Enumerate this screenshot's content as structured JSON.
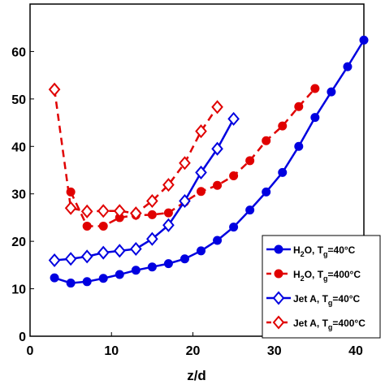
{
  "chart_data": {
    "type": "line",
    "xlabel": "z/d",
    "xlim": [
      0,
      41
    ],
    "ylim": [
      0,
      70
    ],
    "xticks": [
      0,
      10,
      20,
      30,
      40
    ],
    "yticks": [
      0,
      10,
      20,
      30,
      40,
      50,
      60
    ],
    "legend": "lower right",
    "series": [
      {
        "name": "H₂O, Tᵧ=40°C",
        "legend_parts": [
          "H",
          "2",
          "O, T",
          "g",
          "=40°C"
        ],
        "color": "#0000e0",
        "dash": false,
        "marker": "circle",
        "filled": true,
        "x": [
          3,
          5,
          7,
          9,
          11,
          13,
          15,
          17,
          19,
          21,
          23,
          25,
          27,
          29,
          31,
          33,
          35,
          37,
          39,
          41
        ],
        "values": [
          12.3,
          11.2,
          11.5,
          12.2,
          13,
          13.9,
          14.6,
          15.3,
          16.3,
          18,
          20.2,
          23,
          26.6,
          30.4,
          34.5,
          40,
          46.1,
          51.5,
          56.8,
          62.4
        ]
      },
      {
        "name": "H₂O, Tᵧ=400°C",
        "legend_parts": [
          "H",
          "2",
          "O, T",
          "g",
          "=400°C"
        ],
        "color": "#e00000",
        "dash": true,
        "marker": "circle",
        "filled": true,
        "x": [
          5,
          7,
          9,
          11,
          13,
          15,
          17,
          19,
          21,
          23,
          25,
          27,
          29,
          31,
          33,
          35
        ],
        "values": [
          30.4,
          23.2,
          23.2,
          25,
          25.5,
          25.6,
          26,
          28.3,
          30.5,
          31.8,
          33.8,
          37,
          41.2,
          44.3,
          48.4,
          52.2
        ]
      },
      {
        "name": "Jet A, Tᵧ=40°C",
        "legend_parts": [
          "Jet A, T",
          "g",
          "=40°C"
        ],
        "color": "#0000e0",
        "dash": false,
        "marker": "diamond",
        "filled": false,
        "x": [
          3,
          5,
          7,
          9,
          11,
          13,
          15,
          17,
          19,
          21,
          23,
          25
        ],
        "values": [
          16,
          16.3,
          16.8,
          17.6,
          18,
          18.4,
          20.5,
          23.4,
          28.5,
          34.5,
          39.5,
          45.8
        ]
      },
      {
        "name": "Jet A, Tᵧ=400°C",
        "legend_parts": [
          "Jet A, T",
          "g",
          "=400°C"
        ],
        "color": "#e00000",
        "dash": true,
        "marker": "diamond",
        "filled": false,
        "x": [
          3,
          5,
          7,
          9,
          11,
          13,
          15,
          17,
          19,
          21,
          23
        ],
        "values": [
          52,
          27,
          26.3,
          26.4,
          26.4,
          25.9,
          28.5,
          31.9,
          36.5,
          43.2,
          48.3
        ]
      }
    ]
  }
}
